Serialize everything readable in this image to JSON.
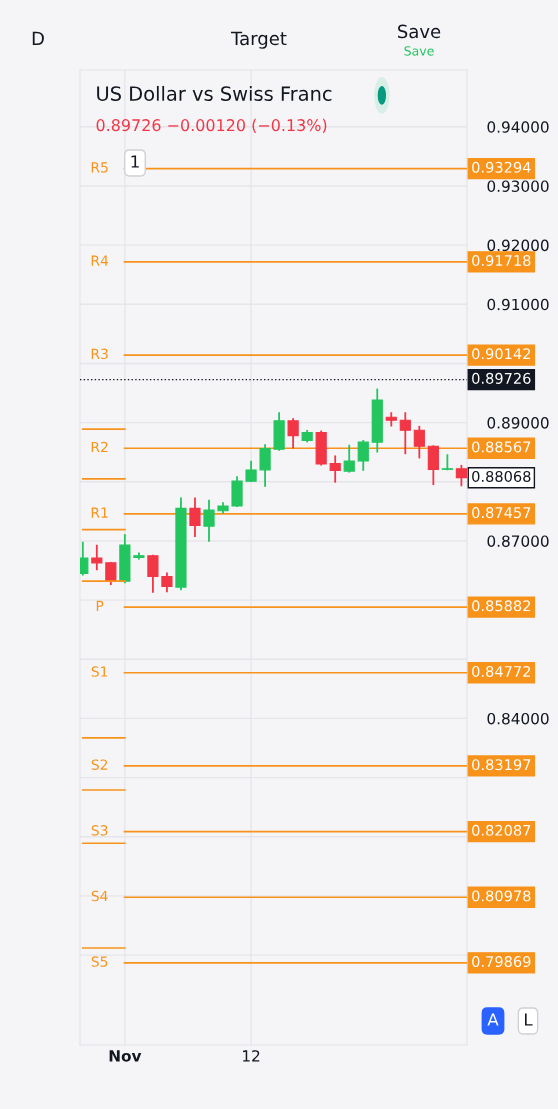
{
  "chart_data": {
    "type": "candlestick",
    "title": "US Dollar vs Swiss Franc",
    "subtitle": "0.89726 −0.00120 (−0.13%)",
    "categories": [
      null,
      null,
      null,
      "Nov",
      null,
      null,
      null,
      null,
      null,
      null,
      null,
      null,
      "12",
      null,
      null,
      null,
      null,
      null,
      null,
      null,
      null,
      null,
      null,
      null,
      null,
      null,
      null,
      null
    ],
    "ohlc": [
      [
        0.8645,
        0.8697,
        0.8643,
        0.8671
      ],
      [
        0.8671,
        0.8692,
        0.8652,
        0.8663
      ],
      [
        0.8663,
        0.8663,
        0.8627,
        0.8632
      ],
      [
        0.8632,
        0.871,
        0.863,
        0.8693
      ],
      [
        0.8672,
        0.8679,
        0.867,
        0.8675
      ],
      [
        0.8675,
        0.8675,
        0.8614,
        0.864
      ],
      [
        0.864,
        0.8645,
        0.8615,
        0.8623
      ],
      [
        0.8622,
        0.8772,
        0.8618,
        0.8755
      ],
      [
        0.8755,
        0.8772,
        0.8708,
        0.8726
      ],
      [
        0.8725,
        0.8768,
        0.87,
        0.8752
      ],
      [
        0.8751,
        0.8764,
        0.8748,
        0.8759
      ],
      [
        0.8759,
        0.8808,
        0.8759,
        0.8801
      ],
      [
        0.8801,
        0.8834,
        0.8801,
        0.882
      ],
      [
        0.882,
        0.8862,
        0.8793,
        0.8856
      ],
      [
        0.8855,
        0.8916,
        0.8854,
        0.8903
      ],
      [
        0.8903,
        0.8906,
        0.8858,
        0.8878
      ],
      [
        0.887,
        0.8886,
        0.8868,
        0.8883
      ],
      [
        0.8883,
        0.8885,
        0.8829,
        0.883
      ],
      [
        0.8831,
        0.8843,
        0.88,
        0.8819
      ],
      [
        0.8818,
        0.8861,
        0.8817,
        0.8835
      ],
      [
        0.8835,
        0.8869,
        0.882,
        0.8867
      ],
      [
        0.8867,
        0.8956,
        0.8851,
        0.8938
      ],
      [
        0.8909,
        0.8916,
        0.8895,
        0.8904
      ],
      [
        0.8904,
        0.8916,
        0.8848,
        0.8887
      ],
      [
        0.8887,
        0.8893,
        0.8841,
        0.886
      ],
      [
        0.886,
        0.886,
        0.8796,
        0.8821
      ],
      [
        0.8821,
        0.8845,
        0.8821,
        0.8822
      ],
      [
        0.8822,
        0.8827,
        0.8794,
        0.8807
      ]
    ],
    "colors": [
      "#22c55e",
      "#f23645",
      "#f23645",
      "#22c55e",
      "#22c55e",
      "#f23645",
      "#f23645",
      "#22c55e",
      "#f23645",
      "#22c55e",
      "#22c55e",
      "#22c55e",
      "#22c55e",
      "#22c55e",
      "#22c55e",
      "#f23645",
      "#22c55e",
      "#f23645",
      "#f23645",
      "#22c55e",
      "#22c55e",
      "#22c55e",
      "#f23645",
      "#f23645",
      "#f23645",
      "#f23645",
      "#22c55e",
      "#f23645"
    ],
    "series": [
      {
        "type": "line",
        "color": "#f7931a",
        "values": [
          0.8889,
          0.8889,
          0.8889,
          0.8889,
          null,
          null,
          null,
          null,
          null,
          null,
          null,
          null,
          null,
          null,
          null,
          null,
          null,
          null,
          null,
          null,
          null,
          null,
          null,
          null,
          null,
          null,
          null,
          null
        ]
      },
      {
        "type": "line",
        "color": "#f7931a",
        "values": [
          0.8805,
          0.8805,
          0.8805,
          0.8805,
          null,
          null,
          null,
          null,
          null,
          null,
          null,
          null,
          null,
          null,
          null,
          null,
          null,
          null,
          null,
          null,
          null,
          null,
          null,
          null,
          null,
          null,
          null,
          null
        ]
      },
      {
        "type": "line",
        "color": "#f7931a",
        "values": [
          0.8719,
          0.8719,
          0.8719,
          0.8719,
          null,
          null,
          null,
          null,
          null,
          null,
          null,
          null,
          null,
          null,
          null,
          null,
          null,
          null,
          null,
          null,
          null,
          null,
          null,
          null,
          null,
          null,
          null,
          null
        ]
      },
      {
        "type": "line",
        "color": "#f7931a",
        "values": [
          0.8632,
          0.8632,
          0.8632,
          0.8632,
          null,
          null,
          null,
          null,
          null,
          null,
          null,
          null,
          null,
          null,
          null,
          null,
          null,
          null,
          null,
          null,
          null,
          null,
          null,
          null,
          null,
          null,
          null,
          null
        ]
      },
      {
        "type": "line",
        "color": "#f7931a",
        "values": [
          0.8367,
          0.8367,
          0.8367,
          0.8367,
          null,
          null,
          null,
          null,
          null,
          null,
          null,
          null,
          null,
          null,
          null,
          null,
          null,
          null,
          null,
          null,
          null,
          null,
          null,
          null,
          null,
          null,
          null,
          null
        ]
      },
      {
        "type": "line",
        "color": "#f7931a",
        "values": [
          0.8279,
          0.8279,
          0.8279,
          0.8279,
          null,
          null,
          null,
          null,
          null,
          null,
          null,
          null,
          null,
          null,
          null,
          null,
          null,
          null,
          null,
          null,
          null,
          null,
          null,
          null,
          null,
          null,
          null,
          null
        ]
      },
      {
        "type": "line",
        "color": "#f7931a",
        "values": [
          0.8189,
          0.8189,
          0.8189,
          0.8189,
          null,
          null,
          null,
          null,
          null,
          null,
          null,
          null,
          null,
          null,
          null,
          null,
          null,
          null,
          null,
          null,
          null,
          null,
          null,
          null,
          null,
          null,
          null,
          null
        ]
      },
      {
        "type": "line",
        "color": "#f7931a",
        "values": [
          0.8012,
          0.8012,
          0.8012,
          0.8012,
          null,
          null,
          null,
          null,
          null,
          null,
          null,
          null,
          null,
          null,
          null,
          null,
          null,
          null,
          null,
          null,
          null,
          null,
          null,
          null,
          null,
          null,
          null,
          null
        ]
      }
    ],
    "ref_lines": [
      {
        "axis": "y",
        "value": 0.93294,
        "label": "R5",
        "color": "#f7931a"
      },
      {
        "axis": "y",
        "value": 0.91718,
        "label": "R4",
        "color": "#f7931a"
      },
      {
        "axis": "y",
        "value": 0.90142,
        "label": "R3",
        "color": "#f7931a"
      },
      {
        "axis": "y",
        "value": 0.88567,
        "label": "R2",
        "color": "#f7931a"
      },
      {
        "axis": "y",
        "value": 0.87457,
        "label": "R1",
        "color": "#f7931a"
      },
      {
        "axis": "y",
        "value": 0.85882,
        "label": "P",
        "color": "#f7931a"
      },
      {
        "axis": "y",
        "value": 0.84772,
        "label": "S1",
        "color": "#f7931a"
      },
      {
        "axis": "y",
        "value": 0.83197,
        "label": "S2",
        "color": "#f7931a"
      },
      {
        "axis": "y",
        "value": 0.82087,
        "label": "S3",
        "color": "#f7931a"
      },
      {
        "axis": "y",
        "value": 0.80978,
        "label": "S4",
        "color": "#f7931a"
      },
      {
        "axis": "y",
        "value": 0.79869,
        "label": "S5",
        "color": "#f7931a"
      },
      {
        "axis": "y",
        "value": 0.89726,
        "label": null,
        "color": "#131722",
        "line_style": "dotted"
      }
    ],
    "annotations": [
      "D",
      "Target",
      "Save",
      "Save",
      "1",
      "A",
      "L",
      "0.93294",
      "0.91718",
      "0.90142",
      "0.89726",
      "0.88567",
      "0.88068",
      "0.87457",
      "0.85882",
      "0.84772",
      "0.83197",
      "0.82087",
      "0.80978",
      "0.79869"
    ],
    "ylim": [
      0.7848,
      0.9496
    ],
    "yticks": [
      {
        "value": 0.8,
        "label": null
      },
      {
        "value": 0.81,
        "label": null
      },
      {
        "value": 0.82,
        "label": null
      },
      {
        "value": 0.83,
        "label": null
      },
      {
        "value": 0.84,
        "label": "0.84000"
      },
      {
        "value": 0.85,
        "label": null
      },
      {
        "value": 0.86,
        "label": null
      },
      {
        "value": 0.87,
        "label": "0.87000"
      },
      {
        "value": 0.88,
        "label": null
      },
      {
        "value": 0.89,
        "label": "0.89000"
      },
      {
        "value": 0.9,
        "label": null
      },
      {
        "value": 0.91,
        "label": "0.91000"
      },
      {
        "value": 0.92,
        "label": "0.92000"
      },
      {
        "value": 0.93,
        "label": "0.93000"
      },
      {
        "value": 0.94,
        "label": "0.94000"
      }
    ],
    "grid": true
  }
}
